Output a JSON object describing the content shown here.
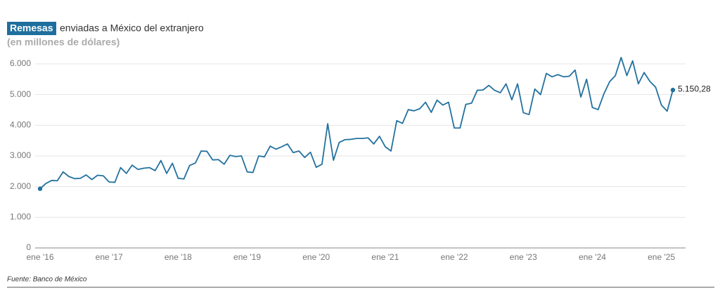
{
  "chart_data": {
    "type": "line",
    "title_highlight": "Remesas",
    "title": "enviadas a México del extranjero",
    "subtitle": "(en millones de dólares)",
    "source": "Fuente: Banco de México",
    "categories": [
      "ene '16",
      null,
      null,
      null,
      null,
      null,
      null,
      null,
      null,
      null,
      null,
      null,
      "ene '17",
      null,
      null,
      null,
      null,
      null,
      null,
      null,
      null,
      null,
      null,
      null,
      "ene '18",
      null,
      null,
      null,
      null,
      null,
      null,
      null,
      null,
      null,
      null,
      null,
      "ene '19",
      null,
      null,
      null,
      null,
      null,
      null,
      null,
      null,
      null,
      null,
      null,
      "ene '20",
      null,
      null,
      null,
      null,
      null,
      null,
      null,
      null,
      null,
      null,
      null,
      "ene '21",
      null,
      null,
      null,
      null,
      null,
      null,
      null,
      null,
      null,
      null,
      null,
      "ene '22",
      null,
      null,
      null,
      null,
      null,
      null,
      null,
      null,
      null,
      null,
      null,
      "ene '23",
      null,
      null,
      null,
      null,
      null,
      null,
      null,
      null,
      null,
      null,
      null,
      "ene '24",
      null,
      null,
      null,
      null,
      null,
      null,
      null,
      null,
      null,
      null,
      null,
      "ene '25",
      null,
      null
    ],
    "series": [
      {
        "name": "Remesas",
        "color": "#23719f",
        "values": [
          1930,
          2100,
          2200,
          2190,
          2480,
          2330,
          2260,
          2270,
          2380,
          2230,
          2370,
          2350,
          2150,
          2140,
          2620,
          2430,
          2700,
          2560,
          2600,
          2620,
          2520,
          2850,
          2430,
          2760,
          2270,
          2250,
          2690,
          2770,
          3160,
          3150,
          2870,
          2880,
          2730,
          3020,
          2980,
          3000,
          2480,
          2460,
          3000,
          2970,
          3320,
          3220,
          3300,
          3390,
          3110,
          3160,
          2950,
          3120,
          2630,
          2730,
          4050,
          2860,
          3440,
          3530,
          3540,
          3570,
          3570,
          3590,
          3390,
          3640,
          3300,
          3160,
          4150,
          4060,
          4510,
          4470,
          4540,
          4750,
          4420,
          4820,
          4660,
          4750,
          3910,
          3910,
          4680,
          4720,
          5140,
          5150,
          5300,
          5140,
          5060,
          5350,
          4830,
          5350,
          4410,
          4350,
          5180,
          5000,
          5690,
          5580,
          5650,
          5580,
          5600,
          5800,
          4920,
          5500,
          4580,
          4510,
          5020,
          5420,
          5620,
          6210,
          5620,
          6100,
          5350,
          5720,
          5430,
          5240,
          4660,
          4460,
          5150.28
        ],
        "value_labels": [
          null,
          null,
          null,
          null,
          null,
          null,
          null,
          null,
          null,
          null,
          null,
          null,
          null,
          null,
          null,
          null,
          null,
          null,
          null,
          null,
          null,
          null,
          null,
          null,
          null,
          null,
          null,
          null,
          null,
          null,
          null,
          null,
          null,
          null,
          null,
          null,
          null,
          null,
          null,
          null,
          null,
          null,
          null,
          null,
          null,
          null,
          null,
          null,
          null,
          null,
          null,
          null,
          null,
          null,
          null,
          null,
          null,
          null,
          null,
          null,
          null,
          null,
          null,
          null,
          null,
          null,
          null,
          null,
          null,
          null,
          null,
          null,
          null,
          null,
          null,
          null,
          null,
          null,
          null,
          null,
          null,
          null,
          null,
          null,
          null,
          null,
          null,
          null,
          null,
          null,
          null,
          null,
          null,
          null,
          null,
          null,
          null,
          null,
          null,
          null,
          null,
          null,
          null,
          null,
          null,
          null,
          null,
          null,
          null,
          null,
          "5.150,28"
        ]
      }
    ],
    "ylim": [
      0,
      6000
    ],
    "yticks": [
      0,
      {
        "value": 1000,
        "label": "1.000"
      },
      {
        "value": 2000,
        "label": "2.000"
      },
      {
        "value": 3000,
        "label": "3.000"
      },
      {
        "value": 4000,
        "label": "4.000"
      },
      {
        "value": 5000,
        "label": "5.000"
      },
      {
        "value": 6000,
        "label": "6.000"
      }
    ],
    "grid": true
  }
}
